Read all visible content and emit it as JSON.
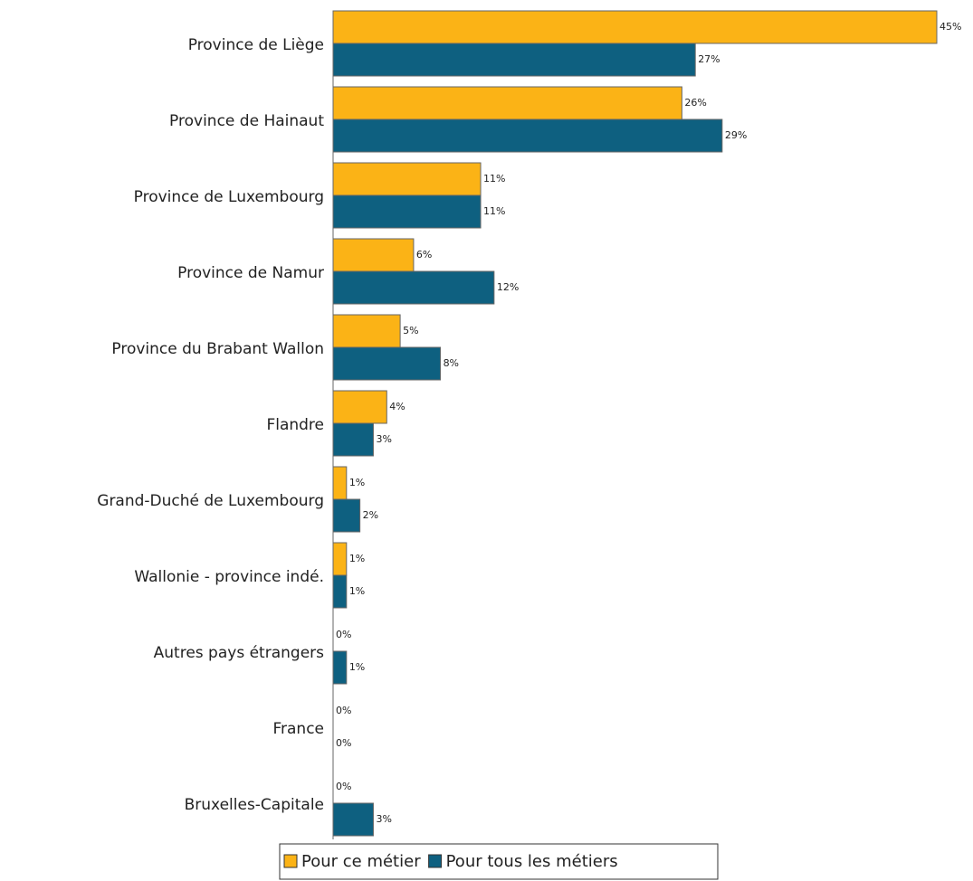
{
  "chart_data": {
    "type": "bar",
    "orientation": "horizontal",
    "categories": [
      "Province de Liège",
      "Province de Hainaut",
      "Province de Luxembourg",
      "Province de Namur",
      "Province du Brabant Wallon",
      "Flandre",
      "Grand-Duché de Luxembourg",
      "Wallonie - province indé.",
      "Autres pays étrangers",
      "France",
      "Bruxelles-Capitale"
    ],
    "series": [
      {
        "name": "Pour ce métier",
        "color": "#fbb316",
        "values": [
          45,
          26,
          11,
          6,
          5,
          4,
          1,
          1,
          0,
          0,
          0
        ],
        "value_labels": [
          "45%",
          "26%",
          "11%",
          "6%",
          "5%",
          "4%",
          "1%",
          "1%",
          "0%",
          "0%",
          "0%"
        ]
      },
      {
        "name": "Pour tous les métiers",
        "color": "#0e6080",
        "values": [
          27,
          29,
          11,
          12,
          8,
          3,
          2,
          1,
          1,
          0,
          3
        ],
        "value_labels": [
          "27%",
          "29%",
          "11%",
          "12%",
          "8%",
          "3%",
          "2%",
          "1%",
          "1%",
          "0%",
          "3%"
        ]
      }
    ],
    "legend": "bottom"
  }
}
